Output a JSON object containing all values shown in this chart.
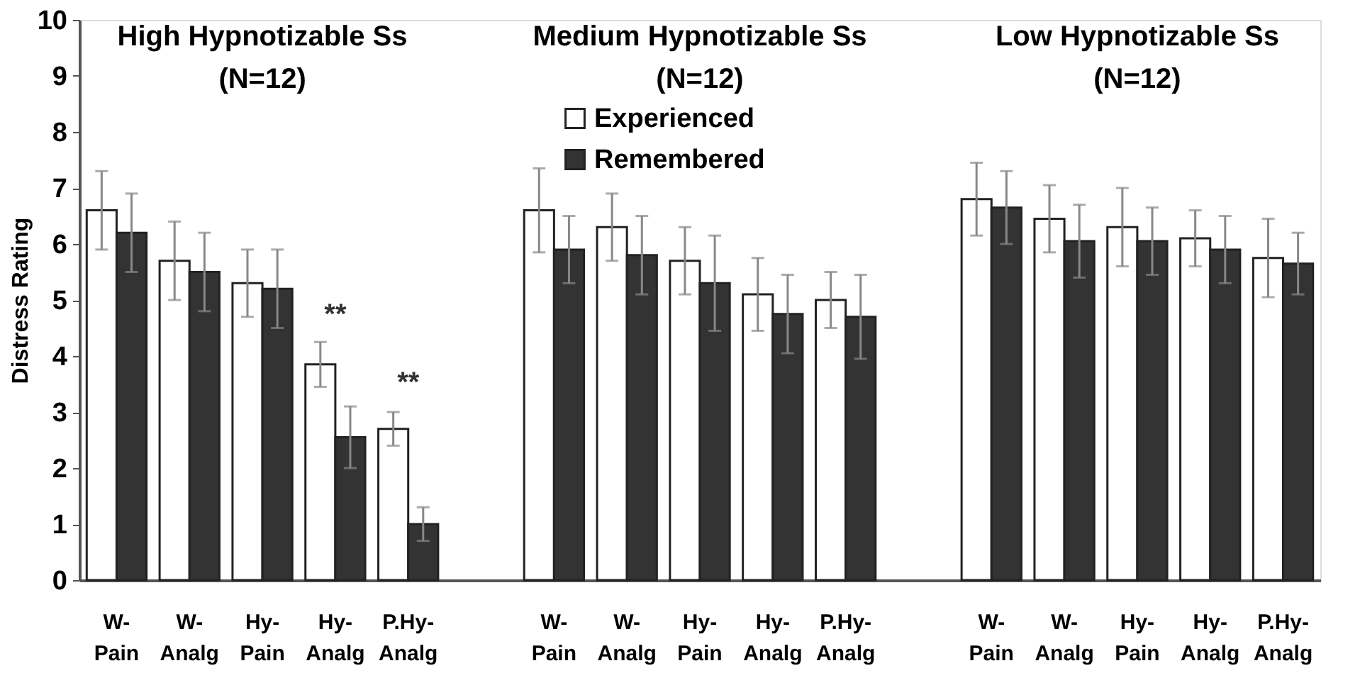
{
  "chart_data": {
    "type": "bar",
    "ylabel": "Distress Rating",
    "categories": [
      "W- Pain",
      "W- Analg",
      "Hy- Pain",
      "Hy- Analg",
      "P.Hy- Analg",
      null,
      "W- Pain",
      "W- Analg",
      "Hy- Pain",
      "Hy- Analg",
      "P.Hy- Analg",
      null,
      "W- Pain",
      "W- Analg",
      "Hy- Pain",
      "Hy- Analg",
      "P.Hy- Analg"
    ],
    "series": [
      {
        "name": "Experienced",
        "color": "#ffffff",
        "values": [
          6.6,
          5.7,
          5.3,
          3.85,
          2.7,
          null,
          6.6,
          6.3,
          5.7,
          5.1,
          5.0,
          null,
          6.8,
          6.45,
          6.3,
          6.1,
          5.75
        ],
        "errors": [
          0.7,
          0.7,
          0.6,
          0.4,
          0.3,
          null,
          0.75,
          0.6,
          0.6,
          0.65,
          0.5,
          null,
          0.65,
          0.6,
          0.7,
          0.5,
          0.7
        ]
      },
      {
        "name": "Remembered",
        "color": "#333333",
        "values": [
          6.2,
          5.5,
          5.2,
          2.55,
          1.0,
          null,
          5.9,
          5.8,
          5.3,
          4.75,
          4.7,
          null,
          6.65,
          6.05,
          6.05,
          5.9,
          5.65
        ],
        "errors": [
          0.7,
          0.7,
          0.7,
          0.55,
          0.3,
          null,
          0.6,
          0.7,
          0.85,
          0.7,
          0.75,
          null,
          0.65,
          0.65,
          0.6,
          0.6,
          0.55
        ]
      }
    ],
    "annotations": [
      "High Hypnotizable Ss\n(N=12)",
      "Medium Hypnotizable Ss\n(N=12)",
      "Low Hypnotizable Ss\n(N=12)",
      "**",
      "**"
    ],
    "ylim": [
      0,
      10
    ],
    "yticks": [
      0,
      1,
      2,
      3,
      4,
      5,
      6,
      7,
      8,
      9,
      10
    ],
    "grid": false,
    "legend": "top"
  }
}
